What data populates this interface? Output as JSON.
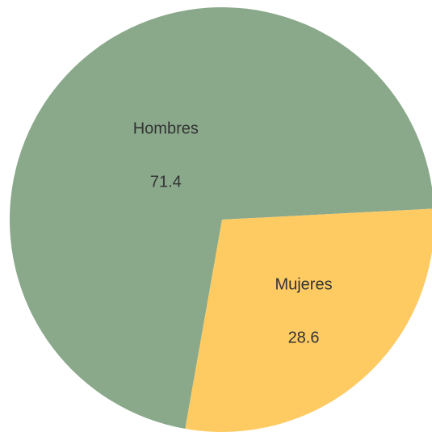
{
  "chart_data": {
    "type": "pie",
    "categories": [
      "Hombres",
      "Mujeres"
    ],
    "values": [
      71.4,
      28.6
    ],
    "colors": [
      "#8aa98b",
      "#fecb63"
    ]
  }
}
